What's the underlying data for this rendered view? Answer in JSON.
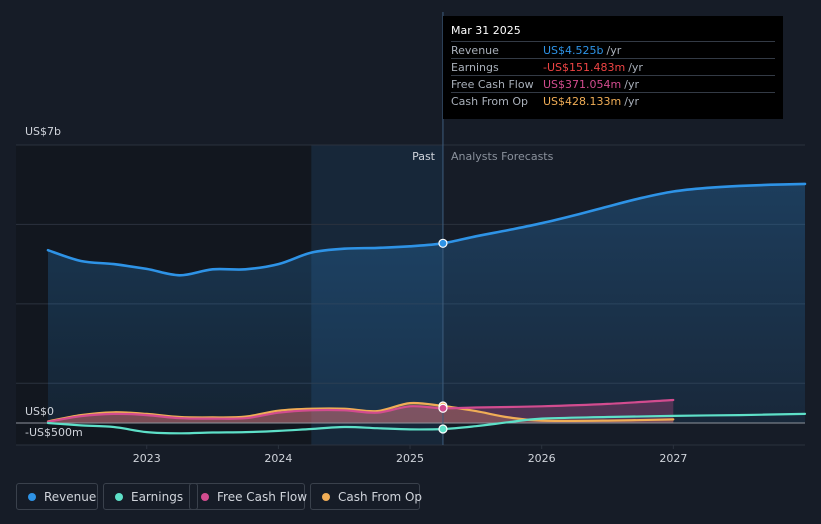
{
  "colors": {
    "revenue": "#2e93e6",
    "earnings": "#5ee0c8",
    "free_cash_flow": "#d24c8f",
    "cash_from_op": "#f0ad56",
    "background": "#161c27",
    "past_shade": "#12171f",
    "highlight": "#1a2d43",
    "grid": "#2b323e",
    "text": "#d0d4db",
    "muted": "#8a919c"
  },
  "tooltip": {
    "date": "Mar 31 2025",
    "rows": [
      {
        "label": "Revenue",
        "value": "US$4.525b",
        "unit": "/yr",
        "color": "#2e93e6"
      },
      {
        "label": "Earnings",
        "value": "-US$151.483m",
        "unit": "/yr",
        "color": "#ef4444"
      },
      {
        "label": "Free Cash Flow",
        "value": "US$371.054m",
        "unit": "/yr",
        "color": "#d24c8f"
      },
      {
        "label": "Cash From Op",
        "value": "US$428.133m",
        "unit": "/yr",
        "color": "#f0ad56"
      }
    ]
  },
  "legend": [
    {
      "label": "Revenue",
      "color": "#2e93e6"
    },
    {
      "label": "Earnings",
      "color": "#5ee0c8"
    },
    {
      "label": "Free Cash Flow",
      "color": "#d24c8f"
    },
    {
      "label": "Cash From Op",
      "color": "#f0ad56"
    }
  ],
  "chart_data": {
    "type": "line",
    "title": "",
    "units": "US$ millions",
    "ylim": [
      -500,
      7000
    ],
    "xlim": [
      2022.25,
      2028.0
    ],
    "x_ticks": [
      2023,
      2024,
      2025,
      2026,
      2027
    ],
    "x_tick_labels": [
      "2023",
      "2024",
      "2025",
      "2026",
      "2027"
    ],
    "y_tick_labels": [
      {
        "value": 7000,
        "label": "US$7b"
      },
      {
        "value": 0,
        "label": "US$0"
      },
      {
        "value": -500,
        "label": "-US$500m"
      }
    ],
    "past_label": "Past",
    "forecast_label": "Analysts Forecasts",
    "divider_x": 2025.25,
    "highlight_range": [
      2024.25,
      2025.25
    ],
    "grid": true,
    "series": [
      {
        "name": "Revenue",
        "key": "revenue",
        "area": true,
        "points": [
          [
            2022.25,
            4350
          ],
          [
            2022.5,
            4080
          ],
          [
            2022.75,
            4000
          ],
          [
            2023.0,
            3880
          ],
          [
            2023.25,
            3720
          ],
          [
            2023.5,
            3870
          ],
          [
            2023.75,
            3870
          ],
          [
            2024.0,
            4000
          ],
          [
            2024.25,
            4290
          ],
          [
            2024.5,
            4390
          ],
          [
            2024.75,
            4410
          ],
          [
            2025.0,
            4450
          ],
          [
            2025.25,
            4525
          ],
          [
            2025.5,
            4700
          ],
          [
            2025.75,
            4860
          ],
          [
            2026.0,
            5030
          ],
          [
            2026.25,
            5230
          ],
          [
            2026.5,
            5450
          ],
          [
            2026.75,
            5660
          ],
          [
            2027.0,
            5830
          ],
          [
            2027.25,
            5920
          ],
          [
            2027.5,
            5970
          ],
          [
            2027.75,
            6000
          ],
          [
            2028.0,
            6020
          ]
        ]
      },
      {
        "name": "Earnings",
        "key": "earnings",
        "area": false,
        "points": [
          [
            2022.25,
            0
          ],
          [
            2022.5,
            -60
          ],
          [
            2022.75,
            -100
          ],
          [
            2023.0,
            -230
          ],
          [
            2023.25,
            -260
          ],
          [
            2023.5,
            -240
          ],
          [
            2023.75,
            -230
          ],
          [
            2024.0,
            -200
          ],
          [
            2024.25,
            -150
          ],
          [
            2024.5,
            -100
          ],
          [
            2024.75,
            -130
          ],
          [
            2025.0,
            -160
          ],
          [
            2025.25,
            -151
          ],
          [
            2025.5,
            -80
          ],
          [
            2025.75,
            20
          ],
          [
            2026.0,
            110
          ],
          [
            2026.5,
            150
          ],
          [
            2027.0,
            180
          ],
          [
            2027.5,
            200
          ],
          [
            2028.0,
            230
          ]
        ]
      },
      {
        "name": "Free Cash Flow",
        "key": "free_cash_flow",
        "area": true,
        "points": [
          [
            2022.25,
            30
          ],
          [
            2022.5,
            170
          ],
          [
            2022.75,
            230
          ],
          [
            2023.0,
            200
          ],
          [
            2023.25,
            120
          ],
          [
            2023.5,
            110
          ],
          [
            2023.75,
            120
          ],
          [
            2024.0,
            260
          ],
          [
            2024.25,
            320
          ],
          [
            2024.5,
            320
          ],
          [
            2024.75,
            260
          ],
          [
            2025.0,
            420
          ],
          [
            2025.25,
            371
          ],
          [
            2025.5,
            390
          ],
          [
            2026.0,
            420
          ],
          [
            2026.5,
            480
          ],
          [
            2027.0,
            580
          ]
        ]
      },
      {
        "name": "Cash From Op",
        "key": "cash_from_op",
        "area": true,
        "points": [
          [
            2022.25,
            40
          ],
          [
            2022.5,
            200
          ],
          [
            2022.75,
            270
          ],
          [
            2023.0,
            230
          ],
          [
            2023.25,
            150
          ],
          [
            2023.5,
            140
          ],
          [
            2023.75,
            160
          ],
          [
            2024.0,
            310
          ],
          [
            2024.25,
            360
          ],
          [
            2024.5,
            360
          ],
          [
            2024.75,
            300
          ],
          [
            2025.0,
            500
          ],
          [
            2025.25,
            428
          ],
          [
            2025.5,
            300
          ],
          [
            2025.75,
            140
          ],
          [
            2026.0,
            60
          ],
          [
            2026.5,
            60
          ],
          [
            2027.0,
            90
          ]
        ]
      }
    ]
  }
}
